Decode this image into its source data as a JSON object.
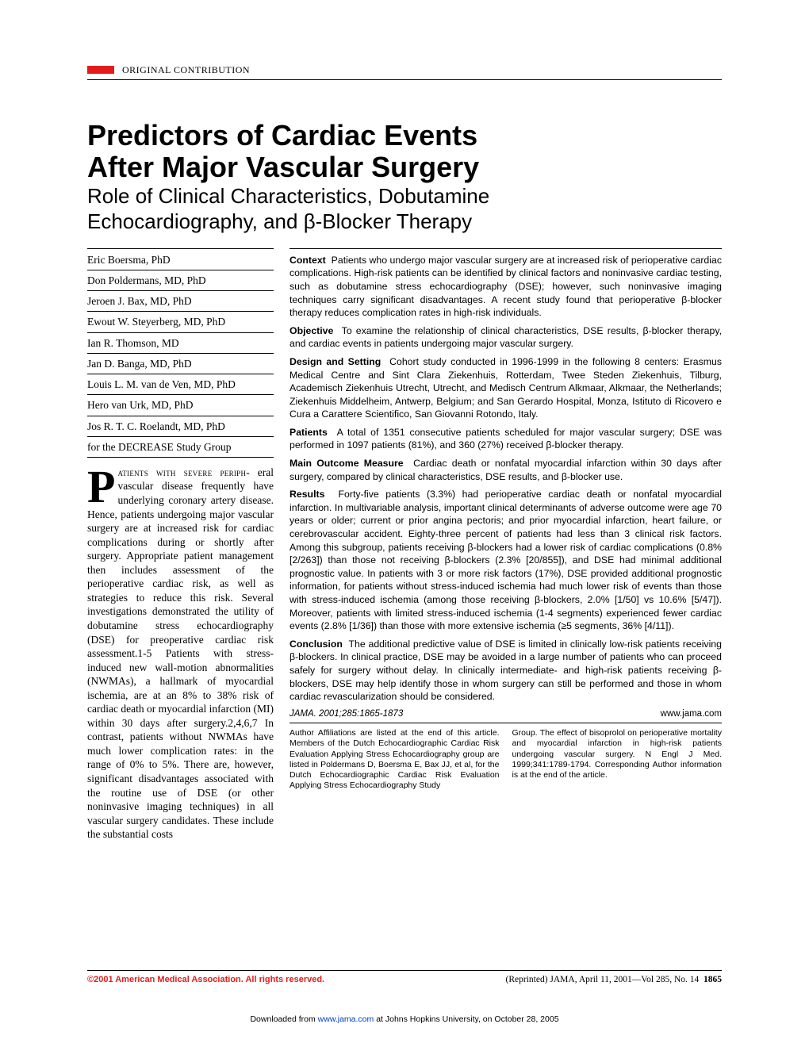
{
  "section_label": "ORIGINAL CONTRIBUTION",
  "title_line1": "Predictors of Cardiac Events",
  "title_line2": "After Major Vascular Surgery",
  "subtitle_line1": "Role of Clinical Characteristics, Dobutamine",
  "subtitle_line2": "Echocardiography, and β-Blocker Therapy",
  "authors": [
    "Eric Boersma, PhD",
    "Don Poldermans, MD, PhD",
    "Jeroen J. Bax, MD, PhD",
    "Ewout W. Steyerberg, MD, PhD",
    "Ian R. Thomson, MD",
    "Jan D. Banga, MD, PhD",
    "Louis L. M. van de Ven, MD, PhD",
    "Hero van Urk, MD, PhD",
    "Jos R. T. C. Roelandt, MD, PhD",
    "for the DECREASE Study Group"
  ],
  "dropcap": "P",
  "body_first_line": "atients with severe periph-",
  "body_text": "eral vascular disease frequently have underlying coronary artery disease. Hence, patients undergoing major vascular surgery are at increased risk for cardiac complications during or shortly after surgery. Appropriate patient management then includes assessment of the perioperative cardiac risk, as well as strategies to reduce this risk. Several investigations demonstrated the utility of dobutamine stress echocardiography (DSE) for preoperative cardiac risk assessment.1-5 Patients with stress-induced new wall-motion abnormalities (NWMAs), a hallmark of myocardial ischemia, are at an 8% to 38% risk of cardiac death or myocardial infarction (MI) within 30 days after surgery.2,4,6,7 In contrast, patients without NWMAs have much lower complication rates: in the range of 0% to 5%. There are, however, significant disadvantages associated with the routine use of DSE (or other noninvasive imaging techniques) in all vascular surgery candidates. These include the substantial costs",
  "abstract": {
    "context_label": "Context",
    "context": "Patients who undergo major vascular surgery are at increased risk of perioperative cardiac complications. High-risk patients can be identified by clinical factors and noninvasive cardiac testing, such as dobutamine stress echocardiography (DSE); however, such noninvasive imaging techniques carry significant disadvantages. A recent study found that perioperative β-blocker therapy reduces complication rates in high-risk individuals.",
    "objective_label": "Objective",
    "objective": "To examine the relationship of clinical characteristics, DSE results, β-blocker therapy, and cardiac events in patients undergoing major vascular surgery.",
    "design_label": "Design and Setting",
    "design": "Cohort study conducted in 1996-1999 in the following 8 centers: Erasmus Medical Centre and Sint Clara Ziekenhuis, Rotterdam, Twee Steden Ziekenhuis, Tilburg, Academisch Ziekenhuis Utrecht, Utrecht, and Medisch Centrum Alkmaar, Alkmaar, the Netherlands; Ziekenhuis Middelheim, Antwerp, Belgium; and San Gerardo Hospital, Monza, Istituto di Ricovero e Cura a Carattere Scientifico, San Giovanni Rotondo, Italy.",
    "patients_label": "Patients",
    "patients": "A total of 1351 consecutive patients scheduled for major vascular surgery; DSE was performed in 1097 patients (81%), and 360 (27%) received β-blocker therapy.",
    "outcome_label": "Main Outcome Measure",
    "outcome": "Cardiac death or nonfatal myocardial infarction within 30 days after surgery, compared by clinical characteristics, DSE results, and β-blocker use.",
    "results_label": "Results",
    "results": "Forty-five patients (3.3%) had perioperative cardiac death or nonfatal myocardial infarction. In multivariable analysis, important clinical determinants of adverse outcome were age 70 years or older; current or prior angina pectoris; and prior myocardial infarction, heart failure, or cerebrovascular accident. Eighty-three percent of patients had less than 3 clinical risk factors. Among this subgroup, patients receiving β-blockers had a lower risk of cardiac complications (0.8% [2/263]) than those not receiving β-blockers (2.3% [20/855]), and DSE had minimal additional prognostic value. In patients with 3 or more risk factors (17%), DSE provided additional prognostic information, for patients without stress-induced ischemia had much lower risk of events than those with stress-induced ischemia (among those receiving β-blockers, 2.0% [1/50] vs 10.6% [5/47]). Moreover, patients with limited stress-induced ischemia (1-4 segments) experienced fewer cardiac events (2.8% [1/36]) than those with more extensive ischemia (≥5 segments, 36% [4/11]).",
    "conclusion_label": "Conclusion",
    "conclusion": "The additional predictive value of DSE is limited in clinically low-risk patients receiving β-blockers. In clinical practice, DSE may be avoided in a large number of patients who can proceed safely for surgery without delay. In clinically intermediate- and high-risk patients receiving β-blockers, DSE may help identify those in whom surgery can still be performed and those in whom cardiac revascularization should be considered."
  },
  "citation": "JAMA. 2001;285:1865-1873",
  "website": "www.jama.com",
  "affil_left": "Author Affiliations are listed at the end of this article. Members of the Dutch Echocardiographic Cardiac Risk Evaluation Applying Stress Echocardiography group are listed in Poldermans D, Boersma E, Bax JJ, et al, for the Dutch Echocardiographic Cardiac Risk Evaluation Applying Stress Echocardiography Study",
  "affil_right": "Group. The effect of bisoprolol on perioperative mortality and myocardial infarction in high-risk patients undergoing vascular surgery. N Engl J Med. 1999;341:1789-1794.\nCorresponding Author information is at the end of the article.",
  "copyright": "©2001 American Medical Association. All rights reserved.",
  "reprint": "(Reprinted) JAMA, April 11, 2001—Vol 285, No. 14",
  "page_number": "1865",
  "download_prefix": "Downloaded from ",
  "download_link": "www.jama.com",
  "download_suffix": " at Johns Hopkins University, on October 28, 2005"
}
